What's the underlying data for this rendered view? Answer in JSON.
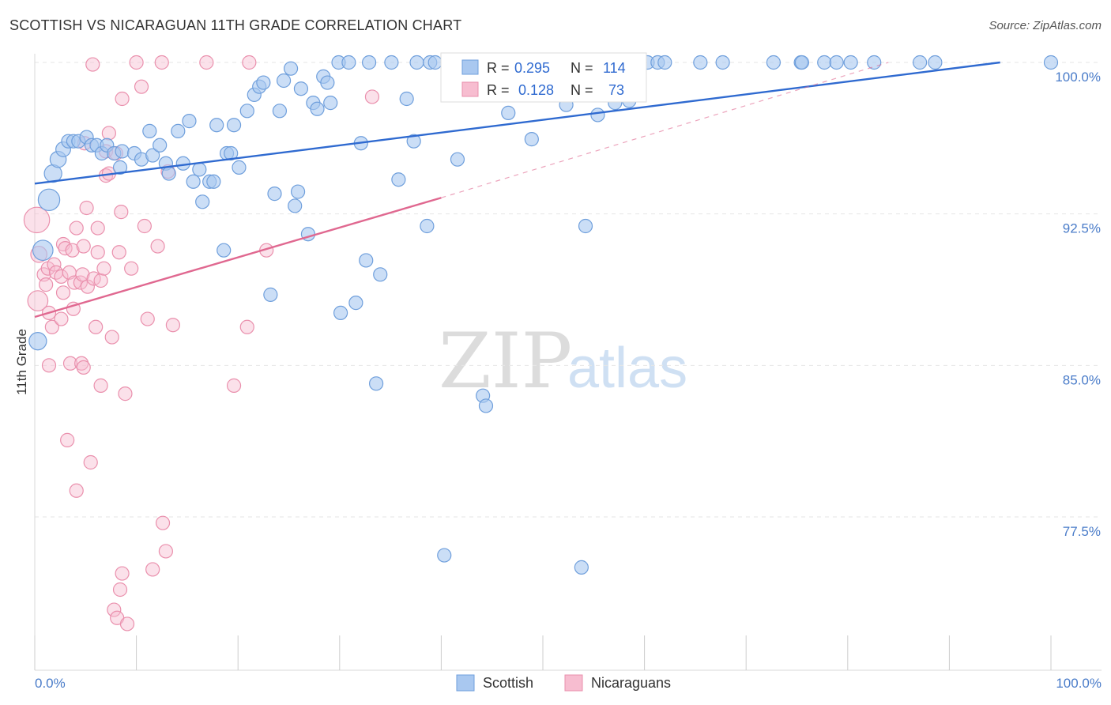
{
  "header": {
    "title": "SCOTTISH VS NICARAGUAN 11TH GRADE CORRELATION CHART",
    "source": "Source: ZipAtlas.com"
  },
  "watermark": {
    "zip": "ZIP",
    "atlas": "atlas"
  },
  "chart_data": {
    "type": "scatter",
    "ylabel": "11th Grade",
    "xlabel": "",
    "xlim": [
      0,
      100
    ],
    "ylim": [
      71.5,
      100.8
    ],
    "x_tick_labels": [
      "0.0%",
      "100.0%"
    ],
    "y_ticks": [
      100.0,
      92.5,
      85.0,
      77.5
    ],
    "y_tick_labels": [
      "100.0%",
      "92.5%",
      "85.0%",
      "77.5%"
    ],
    "grid": true,
    "legend_position": "top-center",
    "colors": {
      "scottish_fill": "#a9c8f0",
      "scottish_stroke": "#6f9fdc",
      "scottish_line": "#2f6ad0",
      "nicaraguan_fill": "#f7bdd0",
      "nicaraguan_stroke": "#ea90ad",
      "nicaraguan_line": "#e06890",
      "value_text": "#2f6ad0"
    },
    "stats_box": [
      {
        "label_r": "R =",
        "r": "0.295",
        "label_n": "N =",
        "n": "114"
      },
      {
        "label_r": "R =",
        "r": "0.128",
        "label_n": "N =",
        "n": "73"
      }
    ],
    "series": [
      {
        "name": "Scottish",
        "trend": {
          "x0": 0,
          "y0": 94.0,
          "x1": 95,
          "y1": 100.0
        },
        "points": [
          [
            1.4,
            93.2,
            1.6
          ],
          [
            0.8,
            90.7,
            1.5
          ],
          [
            0.3,
            86.2,
            1.3
          ],
          [
            1.8,
            94.5,
            1.3
          ],
          [
            2.3,
            95.2,
            1.2
          ],
          [
            2.8,
            95.7,
            1.1
          ],
          [
            3.3,
            96.1,
            1.0
          ],
          [
            3.8,
            96.1,
            1.0
          ],
          [
            4.3,
            96.1,
            1.0
          ],
          [
            5.1,
            96.3,
            1.0
          ],
          [
            5.6,
            95.9,
            1.0
          ],
          [
            6.1,
            95.9,
            1.0
          ],
          [
            6.6,
            95.5,
            1.0
          ],
          [
            7.1,
            95.9,
            1.0
          ],
          [
            7.8,
            95.5,
            1.0
          ],
          [
            8.6,
            95.6,
            1.0
          ],
          [
            8.4,
            94.8,
            1.0
          ],
          [
            9.8,
            95.5,
            1.0
          ],
          [
            10.5,
            95.2,
            1.0
          ],
          [
            11.6,
            95.4,
            1.0
          ],
          [
            11.3,
            96.6,
            1.0
          ],
          [
            12.3,
            95.9,
            1.0
          ],
          [
            12.9,
            95.0,
            1.0
          ],
          [
            13.2,
            94.5,
            1.0
          ],
          [
            14.1,
            96.6,
            1.0
          ],
          [
            14.6,
            95.0,
            1.0
          ],
          [
            15.2,
            97.1,
            1.0
          ],
          [
            15.6,
            94.1,
            1.0
          ],
          [
            16.2,
            94.7,
            1.0
          ],
          [
            16.5,
            93.1,
            1.0
          ],
          [
            17.2,
            94.1,
            1.0
          ],
          [
            17.6,
            94.1,
            1.0
          ],
          [
            17.9,
            96.9,
            1.0
          ],
          [
            18.6,
            90.7,
            1.0
          ],
          [
            18.9,
            95.5,
            1.0
          ],
          [
            19.3,
            95.5,
            1.0
          ],
          [
            19.6,
            96.9,
            1.0
          ],
          [
            20.1,
            94.8,
            1.0
          ],
          [
            20.9,
            97.6,
            1.0
          ],
          [
            21.6,
            98.4,
            1.0
          ],
          [
            22.1,
            98.8,
            1.0
          ],
          [
            22.5,
            99.0,
            1.0
          ],
          [
            23.2,
            88.5,
            1.0
          ],
          [
            23.6,
            93.5,
            1.0
          ],
          [
            24.1,
            97.6,
            1.0
          ],
          [
            24.5,
            99.1,
            1.0
          ],
          [
            25.2,
            99.7,
            1.0
          ],
          [
            25.6,
            92.9,
            1.0
          ],
          [
            25.9,
            93.6,
            1.0
          ],
          [
            26.2,
            98.7,
            1.0
          ],
          [
            26.9,
            91.5,
            1.0
          ],
          [
            27.4,
            98.0,
            1.0
          ],
          [
            27.8,
            97.7,
            1.0
          ],
          [
            28.4,
            99.3,
            1.0
          ],
          [
            28.8,
            99.0,
            1.0
          ],
          [
            29.1,
            98.0,
            1.0
          ],
          [
            29.9,
            100.0,
            1.0
          ],
          [
            30.1,
            87.6,
            1.0
          ],
          [
            30.9,
            100.0,
            1.0
          ],
          [
            31.6,
            88.1,
            1.0
          ],
          [
            32.1,
            96.0,
            1.0
          ],
          [
            32.6,
            90.2,
            1.0
          ],
          [
            32.9,
            100.0,
            1.0
          ],
          [
            33.6,
            84.1,
            1.0
          ],
          [
            34.0,
            89.5,
            1.0
          ],
          [
            35.1,
            100.0,
            1.0
          ],
          [
            35.8,
            94.2,
            1.0
          ],
          [
            36.6,
            98.2,
            1.0
          ],
          [
            37.3,
            96.1,
            1.0
          ],
          [
            37.6,
            100.0,
            1.0
          ],
          [
            38.6,
            91.9,
            1.0
          ],
          [
            38.9,
            100.0,
            1.0
          ],
          [
            39.4,
            100.0,
            1.0
          ],
          [
            40.3,
            75.6,
            1.0
          ],
          [
            40.9,
            100.0,
            1.0
          ],
          [
            41.6,
            95.2,
            1.0
          ],
          [
            41.9,
            100.0,
            1.0
          ],
          [
            42.5,
            100.0,
            1.0
          ],
          [
            43.2,
            100.0,
            1.0
          ],
          [
            44.1,
            83.5,
            1.0
          ],
          [
            44.4,
            83.0,
            1.0
          ],
          [
            45.0,
            100.0,
            1.0
          ],
          [
            46.1,
            100.0,
            1.0
          ],
          [
            46.6,
            97.5,
            1.0
          ],
          [
            47.4,
            100.0,
            1.0
          ],
          [
            48.1,
            100.0,
            1.0
          ],
          [
            48.9,
            96.2,
            1.0
          ],
          [
            49.3,
            100.0,
            1.0
          ],
          [
            50.2,
            100.0,
            1.0
          ],
          [
            51.0,
            100.0,
            1.0
          ],
          [
            52.3,
            97.9,
            1.0
          ],
          [
            52.8,
            100.0,
            1.0
          ],
          [
            53.3,
            100.0,
            1.0
          ],
          [
            54.2,
            91.9,
            1.0
          ],
          [
            54.9,
            100.0,
            1.0
          ],
          [
            55.4,
            97.4,
            1.0
          ],
          [
            55.9,
            100.0,
            1.0
          ],
          [
            56.8,
            100.0,
            1.0
          ],
          [
            57.1,
            98.0,
            1.0
          ],
          [
            57.7,
            100.0,
            1.0
          ],
          [
            58.5,
            98.1,
            1.0
          ],
          [
            59.0,
            100.0,
            1.0
          ],
          [
            59.3,
            100.0,
            1.0
          ],
          [
            60.3,
            100.0,
            1.0
          ],
          [
            61.3,
            100.0,
            1.0
          ],
          [
            62.0,
            100.0,
            1.0
          ],
          [
            53.8,
            75.0,
            1.0
          ],
          [
            65.5,
            100.0,
            1.0
          ],
          [
            67.7,
            100.0,
            1.0
          ],
          [
            72.7,
            100.0,
            1.0
          ],
          [
            75.4,
            100.0,
            1.0
          ],
          [
            75.5,
            100.0,
            1.0
          ],
          [
            77.7,
            100.0,
            1.0
          ],
          [
            78.9,
            100.0,
            1.0
          ],
          [
            80.3,
            100.0,
            1.0
          ],
          [
            82.6,
            100.0,
            1.0
          ],
          [
            87.1,
            100.0,
            1.0
          ],
          [
            88.6,
            100.0,
            1.0
          ],
          [
            100.0,
            100.0,
            1.0
          ]
        ]
      },
      {
        "name": "Nicaraguans",
        "trend": {
          "x0": 0,
          "y0": 87.4,
          "x1": 40,
          "y1": 93.3,
          "dash_to": {
            "x": 84,
            "y": 100.0
          }
        },
        "points": [
          [
            0.2,
            92.2,
            1.9
          ],
          [
            0.3,
            88.2,
            1.5
          ],
          [
            0.4,
            90.5,
            1.2
          ],
          [
            0.9,
            89.5,
            1.0
          ],
          [
            1.1,
            89.0,
            1.0
          ],
          [
            1.3,
            89.8,
            1.0
          ],
          [
            1.4,
            87.6,
            1.0
          ],
          [
            1.7,
            86.9,
            1.0
          ],
          [
            1.4,
            85.0,
            1.0
          ],
          [
            1.9,
            90.0,
            1.0
          ],
          [
            2.1,
            89.6,
            1.0
          ],
          [
            2.6,
            89.4,
            1.0
          ],
          [
            2.8,
            88.6,
            1.0
          ],
          [
            2.8,
            91.0,
            1.0
          ],
          [
            2.6,
            87.3,
            1.0
          ],
          [
            3.0,
            90.8,
            1.0
          ],
          [
            3.2,
            81.3,
            1.0
          ],
          [
            3.4,
            89.6,
            1.0
          ],
          [
            3.5,
            85.1,
            1.0
          ],
          [
            3.7,
            90.7,
            1.0
          ],
          [
            3.8,
            87.8,
            1.0
          ],
          [
            3.9,
            89.1,
            1.0
          ],
          [
            4.1,
            78.8,
            1.0
          ],
          [
            4.1,
            91.8,
            1.0
          ],
          [
            4.5,
            89.1,
            1.0
          ],
          [
            4.6,
            85.1,
            1.0
          ],
          [
            4.8,
            84.9,
            1.0
          ],
          [
            4.7,
            89.5,
            1.0
          ],
          [
            4.8,
            90.9,
            1.0
          ],
          [
            4.9,
            96.0,
            1.0
          ],
          [
            5.1,
            92.8,
            1.0
          ],
          [
            5.2,
            88.9,
            1.0
          ],
          [
            5.5,
            80.2,
            1.0
          ],
          [
            5.7,
            99.9,
            1.0
          ],
          [
            5.8,
            89.3,
            1.0
          ],
          [
            6.0,
            86.9,
            1.0
          ],
          [
            6.2,
            91.8,
            1.0
          ],
          [
            6.2,
            90.6,
            1.0
          ],
          [
            6.5,
            89.2,
            1.0
          ],
          [
            6.5,
            84.0,
            1.0
          ],
          [
            6.8,
            89.8,
            1.0
          ],
          [
            7.0,
            95.6,
            1.0
          ],
          [
            7.0,
            94.4,
            1.0
          ],
          [
            7.3,
            94.5,
            1.0
          ],
          [
            7.3,
            96.5,
            1.0
          ],
          [
            7.6,
            86.4,
            1.0
          ],
          [
            7.8,
            72.9,
            1.0
          ],
          [
            8.0,
            95.5,
            1.0
          ],
          [
            8.1,
            72.5,
            1.0
          ],
          [
            8.3,
            90.6,
            1.0
          ],
          [
            8.4,
            73.9,
            1.0
          ],
          [
            8.5,
            92.6,
            1.0
          ],
          [
            8.6,
            98.2,
            1.0
          ],
          [
            8.6,
            74.7,
            1.0
          ],
          [
            8.9,
            83.6,
            1.0
          ],
          [
            9.1,
            72.2,
            1.0
          ],
          [
            9.5,
            89.8,
            1.0
          ],
          [
            10.0,
            100.0,
            1.0
          ],
          [
            10.5,
            98.8,
            1.0
          ],
          [
            10.8,
            91.9,
            1.0
          ],
          [
            11.1,
            87.3,
            1.0
          ],
          [
            11.6,
            74.9,
            1.0
          ],
          [
            12.1,
            90.9,
            1.0
          ],
          [
            12.6,
            77.2,
            1.0
          ],
          [
            12.9,
            75.8,
            1.0
          ],
          [
            13.1,
            94.6,
            1.0
          ],
          [
            13.6,
            87.0,
            1.0
          ],
          [
            12.5,
            100.0,
            1.0
          ],
          [
            16.9,
            100.0,
            1.0
          ],
          [
            19.6,
            84.0,
            1.0
          ],
          [
            21.1,
            100.0,
            1.0
          ],
          [
            20.9,
            86.9,
            1.0
          ],
          [
            22.8,
            90.7,
            1.0
          ],
          [
            33.2,
            98.3,
            1.0
          ]
        ]
      }
    ]
  }
}
